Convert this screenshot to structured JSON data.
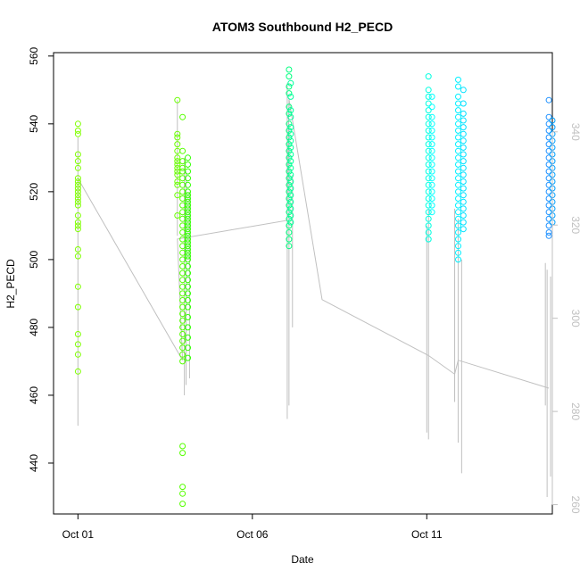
{
  "chart_data": {
    "type": "scatter",
    "title": "ATOM3 Southbound H2_PECD",
    "xlabel": "Date",
    "ylabel": "H2_PECD",
    "x_ticks": [
      "Oct 01",
      "Oct 06",
      "Oct 11"
    ],
    "x_tick_days": [
      1,
      6,
      11
    ],
    "xlim_days": [
      0.3,
      14.6
    ],
    "ylim": [
      425,
      561
    ],
    "y_ticks": [
      440,
      460,
      480,
      500,
      520,
      540,
      560
    ],
    "y2_ticks": [
      260,
      280,
      300,
      320,
      340
    ],
    "y2lim": [
      258,
      357
    ],
    "grid": false,
    "point_series": [
      {
        "day": 1.0,
        "color": "#7fff00",
        "ys": [
          540,
          538,
          537,
          531,
          529,
          527,
          524,
          523,
          522,
          521,
          520,
          519,
          518,
          517,
          516,
          513,
          511,
          510,
          509,
          503,
          501,
          492,
          486,
          478,
          475,
          472,
          467
        ]
      },
      {
        "day": 3.85,
        "color": "#6aff00",
        "ys": [
          547,
          537,
          536,
          534,
          532,
          530,
          529,
          528,
          527,
          526,
          525,
          523,
          522,
          519,
          513
        ]
      },
      {
        "day": 4.0,
        "color": "#55ff00",
        "ys": [
          542,
          532,
          529,
          527,
          526,
          524,
          522,
          520,
          518,
          516,
          514,
          512,
          510,
          508,
          506,
          504,
          502,
          500,
          498,
          496,
          494,
          492,
          490,
          488,
          486,
          484,
          482,
          480,
          478,
          476,
          474,
          472,
          470,
          445,
          443,
          433,
          431,
          428
        ]
      },
      {
        "day": 4.15,
        "color": "#30ff00",
        "ys": [
          530,
          528,
          526,
          524,
          522,
          520,
          519,
          518,
          517,
          516,
          515,
          514,
          513,
          512,
          511,
          510,
          509,
          508,
          507,
          506,
          505,
          504,
          503,
          502,
          501,
          500,
          498,
          496,
          494,
          492,
          490,
          488,
          486,
          483,
          480,
          477,
          474,
          471
        ]
      },
      {
        "day": 7.05,
        "color": "#00ff7f",
        "ys": [
          556,
          554,
          551,
          549,
          545,
          543,
          540,
          538,
          536,
          534,
          532,
          530,
          528,
          526,
          524,
          522,
          520,
          518,
          516,
          514,
          512,
          510,
          508,
          506,
          504
        ]
      },
      {
        "day": 7.1,
        "color": "#00ff9f",
        "ys": [
          552,
          548,
          544,
          542,
          539,
          537,
          535,
          533,
          531,
          529,
          527,
          525,
          523,
          521,
          519,
          517,
          515,
          513,
          511
        ]
      },
      {
        "day": 11.05,
        "color": "#00ffe0",
        "ys": [
          554,
          550,
          548,
          546,
          544,
          542,
          540,
          538,
          536,
          534,
          532,
          530,
          528,
          526,
          524,
          522,
          520,
          518,
          516,
          514,
          512,
          510,
          508,
          506
        ]
      },
      {
        "day": 11.15,
        "color": "#00ffff",
        "ys": [
          548,
          545,
          542,
          540,
          538,
          536,
          534,
          532,
          530,
          528,
          526,
          524,
          522,
          520,
          518,
          516,
          514
        ]
      },
      {
        "day": 11.9,
        "color": "#00f0ff",
        "ys": [
          553,
          551,
          548,
          546,
          544,
          542,
          540,
          538,
          536,
          534,
          532,
          530,
          528,
          526,
          524,
          522,
          520,
          518,
          516,
          514,
          512,
          510,
          508,
          506,
          504,
          502,
          500
        ]
      },
      {
        "day": 12.05,
        "color": "#00e0ff",
        "ys": [
          550,
          546,
          543,
          541,
          539,
          537,
          535,
          533,
          531,
          529,
          527,
          525,
          523,
          521,
          519,
          517,
          515,
          513,
          511,
          509
        ]
      },
      {
        "day": 14.5,
        "color": "#1e90ff",
        "ys": [
          547,
          542,
          540,
          538,
          536,
          534,
          532,
          530,
          528,
          526,
          524,
          522,
          520,
          518,
          516,
          514,
          512,
          510,
          508,
          507
        ]
      },
      {
        "day": 14.6,
        "color": "#00a0ff",
        "ys": [
          541,
          539,
          537,
          535,
          533,
          531,
          529,
          527,
          525,
          523,
          521,
          519,
          517,
          515,
          513,
          511
        ]
      }
    ],
    "line_series": {
      "color": "#c0c0c0",
      "axis": "right",
      "x_days": [
        1.0,
        4.0,
        3.85,
        7.0,
        7.05,
        8.0,
        11.05,
        11.8,
        11.9,
        14.5
      ],
      "y": [
        330,
        291,
        317,
        321,
        347,
        304,
        292,
        288,
        291,
        285
      ]
    },
    "vertical_spans": {
      "color": "#c0c0c0",
      "axis": "left",
      "items": [
        {
          "day": 1.0,
          "ymin": 451,
          "ymax": 536
        },
        {
          "day": 3.85,
          "ymin": 507,
          "ymax": 547
        },
        {
          "day": 4.05,
          "ymin": 460,
          "ymax": 530
        },
        {
          "day": 4.1,
          "ymin": 463,
          "ymax": 526
        },
        {
          "day": 4.2,
          "ymin": 465,
          "ymax": 520
        },
        {
          "day": 7.0,
          "ymin": 453,
          "ymax": 552
        },
        {
          "day": 7.05,
          "ymin": 457,
          "ymax": 540
        },
        {
          "day": 7.15,
          "ymin": 480,
          "ymax": 525
        },
        {
          "day": 11.0,
          "ymin": 449,
          "ymax": 510
        },
        {
          "day": 11.05,
          "ymin": 447,
          "ymax": 515
        },
        {
          "day": 11.8,
          "ymin": 458,
          "ymax": 515
        },
        {
          "day": 11.9,
          "ymin": 446,
          "ymax": 512
        },
        {
          "day": 12.0,
          "ymin": 437,
          "ymax": 500
        },
        {
          "day": 14.4,
          "ymin": 457,
          "ymax": 499
        },
        {
          "day": 14.45,
          "ymin": 430,
          "ymax": 497
        },
        {
          "day": 14.55,
          "ymin": 436,
          "ymax": 495
        },
        {
          "day": 14.6,
          "ymin": 441,
          "ymax": 490
        }
      ]
    }
  }
}
